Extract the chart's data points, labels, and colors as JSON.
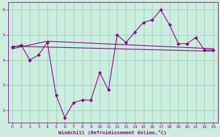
{
  "line1_x": [
    0,
    1,
    2,
    3,
    4,
    5,
    6,
    7,
    8,
    9,
    10,
    11,
    12,
    13,
    14,
    15,
    16,
    17,
    18,
    19,
    20,
    21,
    22,
    23
  ],
  "line1_y": [
    4.5,
    4.6,
    4.0,
    4.2,
    4.7,
    2.6,
    1.7,
    2.3,
    2.4,
    2.4,
    3.5,
    2.8,
    5.0,
    4.7,
    5.1,
    5.5,
    5.6,
    6.0,
    5.4,
    4.65,
    4.65,
    4.9,
    4.4,
    4.4
  ],
  "line2_x": [
    0,
    23
  ],
  "line2_y": [
    4.55,
    4.35
  ],
  "line3_x": [
    0,
    4,
    23
  ],
  "line3_y": [
    4.45,
    4.75,
    4.45
  ],
  "line_color": "#880088",
  "background_color": "#cceedd",
  "grid_color": "#99cccc",
  "xlabel": "Windchill (Refroidissement éolien,°C)",
  "xlim": [
    -0.5,
    23.5
  ],
  "ylim": [
    1.5,
    6.3
  ],
  "yticks": [
    2,
    3,
    4,
    5,
    6
  ],
  "xticks": [
    0,
    1,
    2,
    3,
    4,
    5,
    6,
    7,
    8,
    9,
    10,
    11,
    12,
    13,
    14,
    15,
    16,
    17,
    18,
    19,
    20,
    21,
    22,
    23
  ],
  "marker": "D",
  "markersize": 2.5,
  "linewidth": 0.8
}
